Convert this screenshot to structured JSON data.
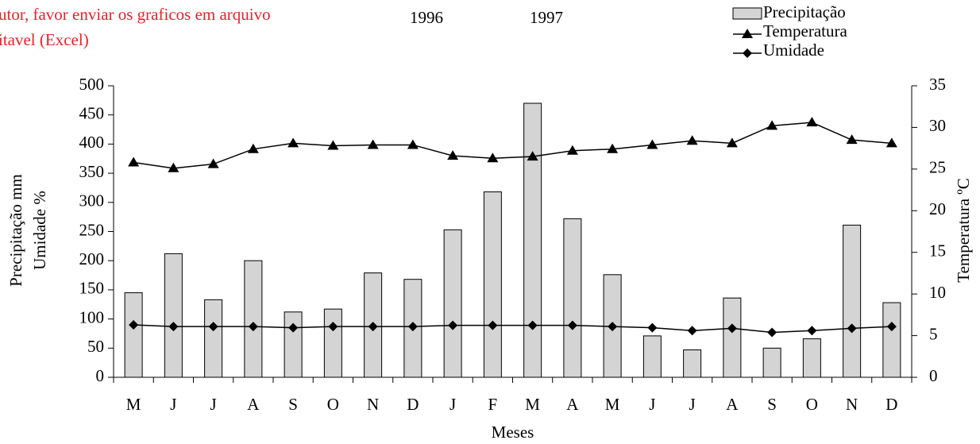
{
  "chart_data": {
    "type": "bar",
    "annotations": [
      {
        "text": "utor, favor enviar os graficos em arquivo",
        "color": "#e8202a"
      },
      {
        "text": "itavel (Excel)",
        "color": "#e8202a"
      },
      {
        "text": "1996",
        "color": "#000000"
      },
      {
        "text": "1997",
        "color": "#000000"
      }
    ],
    "xlabel": "Meses",
    "ylabel": [
      "Precipitação mm",
      "Umidade %"
    ],
    "y2label": "Temperatura ºC",
    "categories": [
      "M",
      "J",
      "J",
      "A",
      "S",
      "O",
      "N",
      "D",
      "J",
      "F",
      "M",
      "A",
      "M",
      "J",
      "J",
      "A",
      "S",
      "O",
      "N",
      "D"
    ],
    "series": [
      {
        "name": "Precipitação",
        "type": "bar",
        "color": "#d4d4d4",
        "values": [
          145,
          212,
          133,
          200,
          112,
          117,
          179,
          168,
          253,
          318,
          470,
          272,
          176,
          71,
          47,
          136,
          50,
          66,
          261,
          128
        ]
      },
      {
        "name": "Temperatura",
        "type": "line",
        "marker": "triangle",
        "axis": "y2",
        "color": "#000000",
        "values": [
          25.8,
          25.1,
          25.6,
          27.4,
          28.1,
          27.8,
          27.9,
          27.9,
          26.6,
          26.3,
          26.5,
          27.2,
          27.4,
          27.9,
          28.4,
          28.1,
          30.2,
          30.6,
          28.5,
          28.1
        ]
      },
      {
        "name": "Umidade",
        "type": "line",
        "marker": "diamond",
        "color": "#000000",
        "values": [
          90,
          87,
          87,
          87,
          85,
          87,
          87,
          87,
          89,
          89,
          89,
          89,
          87,
          85,
          80,
          84,
          77,
          80,
          84,
          87
        ]
      }
    ],
    "ylim": [
      0,
      500
    ],
    "yticks": [
      0,
      50,
      100,
      150,
      200,
      250,
      300,
      350,
      400,
      450,
      500
    ],
    "y2lim": [
      0,
      35
    ],
    "y2ticks": [
      0,
      5,
      10,
      15,
      20,
      25,
      30,
      35
    ],
    "legend": "top-right",
    "grid": false
  }
}
